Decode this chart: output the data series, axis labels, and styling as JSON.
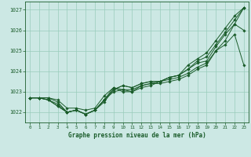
{
  "title": "Graphe pression niveau de la mer (hPa)",
  "bg_color": "#cce8e4",
  "grid_color": "#99ccbb",
  "line_color": "#1a5c2a",
  "xlim": [
    -0.5,
    23.5
  ],
  "ylim": [
    1021.5,
    1027.4
  ],
  "yticks": [
    1022,
    1023,
    1024,
    1025,
    1026,
    1027
  ],
  "xticks": [
    0,
    1,
    2,
    3,
    4,
    5,
    6,
    7,
    8,
    9,
    10,
    11,
    12,
    13,
    14,
    15,
    16,
    17,
    18,
    19,
    20,
    21,
    22,
    23
  ],
  "lines": [
    [
      1022.7,
      1022.7,
      1022.7,
      1022.5,
      1022.0,
      1022.1,
      1021.9,
      1022.1,
      1022.6,
      1023.2,
      1023.0,
      1023.0,
      1023.3,
      1023.4,
      1023.4,
      1023.5,
      1023.6,
      1023.8,
      1024.1,
      1024.3,
      1025.0,
      1025.5,
      1026.3,
      1027.1
    ],
    [
      1022.7,
      1022.7,
      1022.7,
      1022.6,
      1022.2,
      1022.2,
      1022.1,
      1022.2,
      1022.8,
      1023.2,
      1023.1,
      1023.1,
      1023.3,
      1023.4,
      1023.5,
      1023.6,
      1023.7,
      1023.9,
      1024.2,
      1024.4,
      1025.0,
      1025.3,
      1025.8,
      1024.3
    ],
    [
      1022.7,
      1022.7,
      1022.6,
      1022.4,
      1022.0,
      1022.1,
      1021.9,
      1022.1,
      1022.6,
      1023.0,
      1023.1,
      1023.0,
      1023.2,
      1023.3,
      1023.5,
      1023.7,
      1023.8,
      1024.1,
      1024.4,
      1024.5,
      1025.2,
      1025.8,
      1026.3,
      1026.0
    ],
    [
      1022.7,
      1022.7,
      1022.6,
      1022.3,
      1022.0,
      1022.1,
      1021.9,
      1022.1,
      1022.5,
      1023.1,
      1023.3,
      1023.2,
      1023.4,
      1023.5,
      1023.5,
      1023.7,
      1023.8,
      1024.1,
      1024.5,
      1024.7,
      1025.3,
      1025.9,
      1026.5,
      1027.1
    ],
    [
      1022.7,
      1022.7,
      1022.6,
      1022.3,
      1022.0,
      1022.1,
      1021.9,
      1022.1,
      1022.6,
      1023.1,
      1023.3,
      1023.2,
      1023.4,
      1023.5,
      1023.5,
      1023.7,
      1023.8,
      1024.3,
      1024.6,
      1024.9,
      1025.5,
      1026.1,
      1026.7,
      1027.1
    ]
  ]
}
